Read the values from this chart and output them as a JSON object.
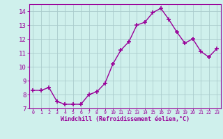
{
  "x": [
    0,
    1,
    2,
    3,
    4,
    5,
    6,
    7,
    8,
    9,
    10,
    11,
    12,
    13,
    14,
    15,
    16,
    17,
    18,
    19,
    20,
    21,
    22,
    23
  ],
  "y": [
    8.3,
    8.3,
    8.5,
    7.5,
    7.3,
    7.3,
    7.3,
    8.0,
    8.2,
    8.8,
    10.2,
    11.2,
    11.8,
    13.0,
    13.2,
    13.9,
    14.2,
    13.4,
    12.5,
    11.7,
    12.0,
    11.1,
    10.7,
    11.3
  ],
  "line_color": "#990099",
  "marker": "+",
  "markersize": 4,
  "markeredgewidth": 1.2,
  "linewidth": 1.0,
  "linestyle": "-",
  "background_color": "#cff0ec",
  "grid_color": "#aacccc",
  "xlabel": "Windchill (Refroidissement éolien,°C)",
  "xlabel_color": "#990099",
  "tick_color": "#990099",
  "ylim": [
    7,
    14.5
  ],
  "xlim": [
    -0.5,
    23.5
  ],
  "yticks": [
    7,
    8,
    9,
    10,
    11,
    12,
    13,
    14
  ],
  "xticks": [
    0,
    1,
    2,
    3,
    4,
    5,
    6,
    7,
    8,
    9,
    10,
    11,
    12,
    13,
    14,
    15,
    16,
    17,
    18,
    19,
    20,
    21,
    22,
    23
  ]
}
